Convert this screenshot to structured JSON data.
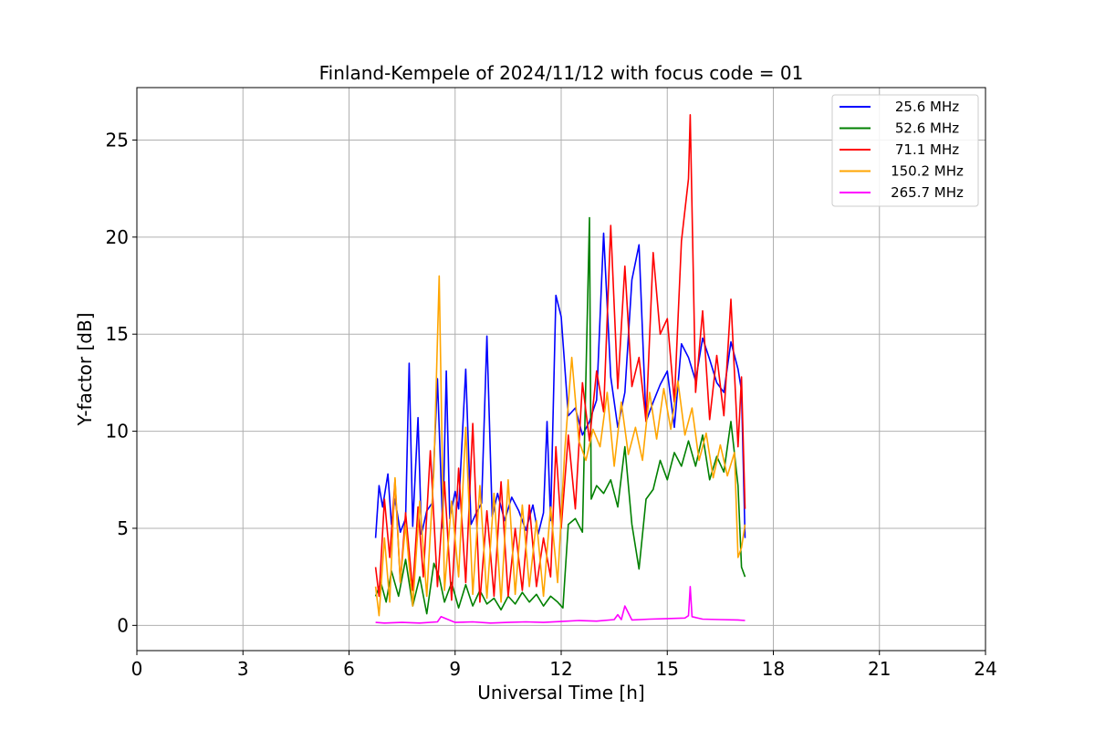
{
  "chart_data": {
    "type": "line",
    "title": "Finland-Kempele of 2024/11/12 with focus code = 01",
    "xlabel": "Universal Time [h]",
    "ylabel": "Y-factor [dB]",
    "xlim": [
      0,
      24
    ],
    "ylim": [
      -1.3,
      27.7
    ],
    "xticks": [
      "0",
      "3",
      "6",
      "9",
      "12",
      "15",
      "18",
      "21",
      "24"
    ],
    "yticks": [
      "0",
      "5",
      "10",
      "15",
      "20",
      "25"
    ],
    "grid": true,
    "legend_position": "top-right",
    "series": [
      {
        "name": "25.6 MHz",
        "color": "#0000ff",
        "x": [
          6.75,
          6.85,
          6.95,
          7.1,
          7.2,
          7.3,
          7.45,
          7.6,
          7.7,
          7.8,
          7.95,
          8.05,
          8.2,
          8.35,
          8.5,
          8.65,
          8.75,
          8.85,
          9.0,
          9.1,
          9.3,
          9.45,
          9.6,
          9.75,
          9.9,
          10.05,
          10.2,
          10.4,
          10.6,
          10.8,
          11.0,
          11.2,
          11.35,
          11.5,
          11.6,
          11.7,
          11.85,
          12.0,
          12.2,
          12.4,
          12.6,
          12.8,
          13.0,
          13.2,
          13.4,
          13.6,
          13.8,
          14.0,
          14.2,
          14.4,
          14.6,
          14.8,
          15.0,
          15.2,
          15.4,
          15.6,
          15.8,
          16.0,
          16.2,
          16.4,
          16.6,
          16.8,
          17.0,
          17.1,
          17.2
        ],
        "y": [
          4.5,
          7.2,
          6.1,
          7.8,
          5.2,
          6.5,
          4.8,
          5.5,
          13.5,
          5.1,
          10.7,
          4.7,
          5.9,
          6.3,
          12.7,
          5.0,
          13.1,
          5.5,
          6.9,
          6.0,
          13.2,
          5.2,
          5.8,
          6.3,
          14.9,
          5.6,
          6.8,
          5.4,
          6.6,
          5.9,
          4.9,
          6.2,
          4.7,
          5.8,
          10.5,
          5.4,
          17.0,
          15.9,
          10.8,
          11.2,
          9.8,
          10.5,
          11.6,
          20.2,
          12.8,
          10.2,
          12.0,
          17.8,
          19.6,
          10.5,
          11.5,
          12.4,
          13.1,
          10.2,
          14.5,
          13.8,
          12.6,
          14.8,
          13.7,
          12.5,
          12.0,
          14.6,
          13.2,
          12.1,
          4.5
        ]
      },
      {
        "name": "52.6 MHz",
        "color": "#008000",
        "x": [
          6.75,
          6.9,
          7.05,
          7.2,
          7.4,
          7.6,
          7.8,
          8.0,
          8.2,
          8.4,
          8.55,
          8.7,
          8.9,
          9.1,
          9.3,
          9.5,
          9.7,
          9.9,
          10.1,
          10.3,
          10.5,
          10.7,
          10.9,
          11.1,
          11.3,
          11.5,
          11.7,
          11.9,
          12.05,
          12.2,
          12.4,
          12.6,
          12.8,
          12.85,
          13.0,
          13.2,
          13.4,
          13.6,
          13.8,
          14.0,
          14.2,
          14.4,
          14.6,
          14.8,
          15.0,
          15.2,
          15.4,
          15.6,
          15.8,
          16.0,
          16.2,
          16.4,
          16.6,
          16.8,
          17.0,
          17.1,
          17.2
        ],
        "y": [
          1.5,
          2.2,
          1.2,
          2.8,
          1.5,
          3.4,
          1.0,
          2.5,
          0.6,
          3.2,
          2.5,
          1.2,
          2.2,
          0.9,
          2.1,
          1.0,
          1.8,
          1.1,
          1.4,
          0.8,
          1.5,
          1.1,
          1.7,
          1.2,
          1.6,
          1.0,
          1.5,
          1.2,
          0.9,
          5.2,
          5.5,
          4.8,
          21.0,
          6.5,
          7.2,
          6.8,
          7.5,
          6.1,
          9.2,
          5.2,
          2.9,
          6.5,
          7.0,
          8.5,
          7.5,
          8.9,
          8.2,
          9.5,
          8.2,
          9.8,
          7.5,
          8.7,
          7.9,
          10.5,
          7.2,
          3.0,
          2.5
        ]
      },
      {
        "name": "71.1 MHz",
        "color": "#ff0000",
        "x": [
          6.75,
          6.85,
          7.0,
          7.15,
          7.3,
          7.45,
          7.6,
          7.8,
          7.95,
          8.1,
          8.3,
          8.5,
          8.7,
          8.9,
          9.1,
          9.3,
          9.5,
          9.7,
          9.9,
          10.1,
          10.3,
          10.5,
          10.7,
          10.9,
          11.1,
          11.3,
          11.5,
          11.7,
          11.85,
          12.0,
          12.2,
          12.4,
          12.6,
          12.8,
          13.0,
          13.2,
          13.4,
          13.6,
          13.8,
          14.0,
          14.2,
          14.4,
          14.6,
          14.8,
          15.0,
          15.2,
          15.4,
          15.6,
          15.65,
          15.8,
          16.0,
          16.2,
          16.4,
          16.6,
          16.8,
          17.0,
          17.1,
          17.2
        ],
        "y": [
          3.0,
          1.5,
          6.5,
          3.5,
          7.5,
          2.2,
          5.8,
          1.8,
          6.1,
          2.5,
          9.0,
          2.0,
          7.4,
          1.3,
          8.1,
          2.2,
          10.4,
          1.2,
          5.9,
          1.5,
          7.4,
          1.5,
          5.0,
          1.8,
          6.2,
          2.0,
          4.5,
          2.5,
          9.2,
          5.0,
          9.8,
          6.0,
          12.5,
          9.5,
          13.1,
          11.0,
          20.6,
          12.2,
          18.5,
          12.3,
          13.8,
          10.5,
          19.2,
          15.0,
          15.8,
          11.5,
          19.8,
          23.0,
          26.3,
          12.0,
          16.2,
          10.6,
          13.9,
          10.8,
          16.8,
          9.2,
          12.8,
          6.0
        ]
      },
      {
        "name": "150.2 MHz",
        "color": "#ffa500",
        "x": [
          6.75,
          6.85,
          7.0,
          7.15,
          7.3,
          7.45,
          7.6,
          7.8,
          8.0,
          8.2,
          8.4,
          8.55,
          8.7,
          8.9,
          9.1,
          9.3,
          9.5,
          9.7,
          9.9,
          10.1,
          10.3,
          10.5,
          10.7,
          10.9,
          11.1,
          11.3,
          11.5,
          11.7,
          11.9,
          12.1,
          12.3,
          12.5,
          12.7,
          12.9,
          13.1,
          13.3,
          13.5,
          13.7,
          13.9,
          14.1,
          14.3,
          14.5,
          14.7,
          14.9,
          15.1,
          15.3,
          15.5,
          15.7,
          15.9,
          16.1,
          16.3,
          16.5,
          16.7,
          16.9,
          17.0,
          17.1,
          17.2
        ],
        "y": [
          2.0,
          0.5,
          4.5,
          1.2,
          7.6,
          2.2,
          5.2,
          1.0,
          6.4,
          1.5,
          8.0,
          18.0,
          1.8,
          6.4,
          2.5,
          10.2,
          1.6,
          7.2,
          1.4,
          6.8,
          1.2,
          7.5,
          1.6,
          6.2,
          2.0,
          5.4,
          1.5,
          6.1,
          2.2,
          9.0,
          13.8,
          9.5,
          8.5,
          10.1,
          9.2,
          12.0,
          8.2,
          11.5,
          8.8,
          10.2,
          8.5,
          12.0,
          9.6,
          12.2,
          10.1,
          12.6,
          9.8,
          11.2,
          8.5,
          9.9,
          7.6,
          9.3,
          7.7,
          8.9,
          3.5,
          4.0,
          5.2
        ]
      },
      {
        "name": "265.7 MHz",
        "color": "#ff00ff",
        "x": [
          6.75,
          7.0,
          7.5,
          8.0,
          8.5,
          8.6,
          9.0,
          9.5,
          10.0,
          10.5,
          11.0,
          11.5,
          12.0,
          12.5,
          13.0,
          13.5,
          13.6,
          13.7,
          13.8,
          14.0,
          14.5,
          15.0,
          15.5,
          15.6,
          15.65,
          15.7,
          16.0,
          16.5,
          17.0,
          17.2
        ],
        "y": [
          0.15,
          0.12,
          0.15,
          0.12,
          0.18,
          0.45,
          0.15,
          0.18,
          0.12,
          0.15,
          0.18,
          0.15,
          0.2,
          0.25,
          0.22,
          0.3,
          0.55,
          0.3,
          1.0,
          0.28,
          0.32,
          0.35,
          0.38,
          0.5,
          2.0,
          0.45,
          0.32,
          0.3,
          0.28,
          0.25
        ]
      }
    ]
  }
}
